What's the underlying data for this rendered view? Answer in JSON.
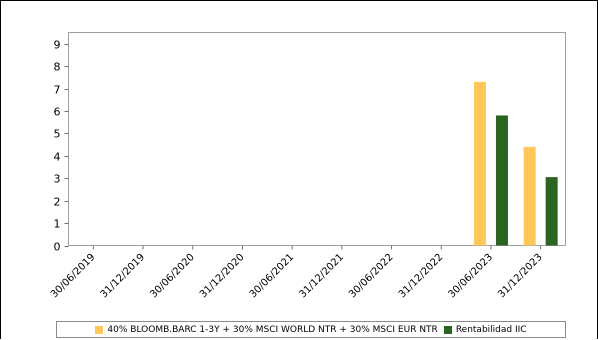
{
  "chart_data": {
    "type": "bar",
    "categories": [
      "30/06/2019",
      "31/12/2019",
      "30/06/2020",
      "31/12/2020",
      "30/06/2021",
      "31/12/2021",
      "30/06/2022",
      "31/12/2022",
      "30/06/2023",
      "31/12/2023"
    ],
    "series": [
      {
        "name": "40% BLOOMB.BARC 1-3Y + 30% MSCI WORLD NTR + 30% MSCI EUR NTR",
        "color": "#FFC75A",
        "values": [
          null,
          null,
          null,
          null,
          null,
          null,
          null,
          null,
          7.3,
          4.4
        ]
      },
      {
        "name": "Rentabilidad IIC",
        "color": "#2B6320",
        "values": [
          null,
          null,
          null,
          null,
          null,
          null,
          null,
          null,
          5.8,
          3.05
        ]
      }
    ],
    "yticks": [
      0,
      1,
      2,
      3,
      4,
      5,
      6,
      7,
      8,
      9
    ],
    "ylim": [
      0,
      9.5
    ],
    "grid": false,
    "legend_position": "bottom"
  }
}
